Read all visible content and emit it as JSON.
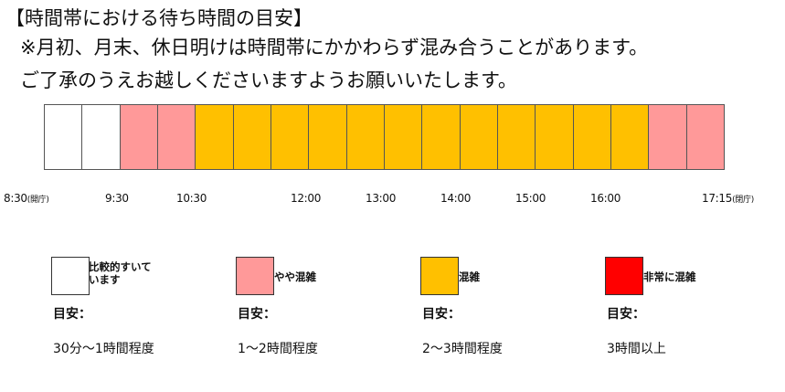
{
  "header": {
    "title": "【時間帯における待ち時間の目安】",
    "note_line1": "※月初、月末、休日明けは時間帯にかかわらず混み合うことがあります。",
    "note_line2": "ご了承のうえお越しくださいますようお願いいたします。"
  },
  "colors": {
    "empty": "#ffffff",
    "slightly": "#ff9999",
    "crowded": "#ffc000",
    "very_crowded": "#ff0000"
  },
  "timeline": {
    "segments": [
      "empty",
      "empty",
      "slightly",
      "slightly",
      "crowded",
      "crowded",
      "crowded",
      "crowded",
      "crowded",
      "crowded",
      "crowded",
      "crowded",
      "crowded",
      "crowded",
      "crowded",
      "crowded",
      "slightly",
      "slightly"
    ],
    "ticks": [
      {
        "time": "8:30",
        "suffix": "(開庁)"
      },
      {
        "time": "9:30",
        "suffix": ""
      },
      {
        "time": "10:30",
        "suffix": ""
      },
      {
        "time": "12:00",
        "suffix": ""
      },
      {
        "time": "13:00",
        "suffix": ""
      },
      {
        "time": "14:00",
        "suffix": ""
      },
      {
        "time": "15:00",
        "suffix": ""
      },
      {
        "time": "16:00",
        "suffix": ""
      },
      {
        "time": "17:15",
        "suffix": "(閉庁)"
      }
    ]
  },
  "legend": [
    {
      "label": "比較的すいて\nいます",
      "meyasu": "目安：",
      "range": "30分～1時間程度",
      "level": "empty"
    },
    {
      "label": "やや混雑",
      "meyasu": "目安：",
      "range": "1～2時間程度",
      "level": "slightly"
    },
    {
      "label": "混雑",
      "meyasu": "目安：",
      "range": "2～3時間程度",
      "level": "crowded"
    },
    {
      "label": "非常に混雑",
      "meyasu": "目安：",
      "range": "3時間以上",
      "level": "very_crowded"
    }
  ]
}
